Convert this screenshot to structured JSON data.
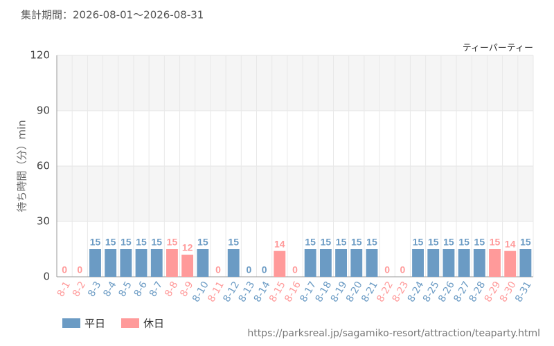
{
  "header": "集計期間：2026-08-01～2026-08-31",
  "footer": "https://parksreal.jp/sagamiko-resort/attraction/teaparty.html",
  "chart_data": {
    "type": "bar",
    "subtitle": "ティーパーティー",
    "y_label": "待ち時間（分）min",
    "categories": [
      "8-1",
      "8-2",
      "8-3",
      "8-4",
      "8-5",
      "8-6",
      "8-7",
      "8-8",
      "8-9",
      "8-10",
      "8-11",
      "8-12",
      "8-13",
      "8-14",
      "8-15",
      "8-16",
      "8-17",
      "8-18",
      "8-19",
      "8-20",
      "8-21",
      "8-22",
      "8-23",
      "8-24",
      "8-25",
      "8-26",
      "8-27",
      "8-28",
      "8-29",
      "8-30",
      "8-31"
    ],
    "series": [
      {
        "name": "平日",
        "color": "#6b9bc4",
        "values": [
          null,
          null,
          15,
          15,
          15,
          15,
          15,
          null,
          null,
          15,
          null,
          15,
          0,
          0,
          null,
          null,
          15,
          15,
          15,
          15,
          15,
          null,
          null,
          15,
          15,
          15,
          15,
          15,
          null,
          null,
          15
        ]
      },
      {
        "name": "休日",
        "color": "#ff9a9a",
        "values": [
          0,
          0,
          null,
          null,
          null,
          null,
          null,
          15,
          12,
          null,
          0,
          null,
          null,
          null,
          14,
          0,
          null,
          null,
          null,
          null,
          null,
          0,
          0,
          null,
          null,
          null,
          null,
          null,
          15,
          14,
          null
        ]
      }
    ],
    "ylim": [
      0,
      120
    ],
    "yticks": [
      0,
      30,
      60,
      90,
      120
    ],
    "grid": true
  }
}
